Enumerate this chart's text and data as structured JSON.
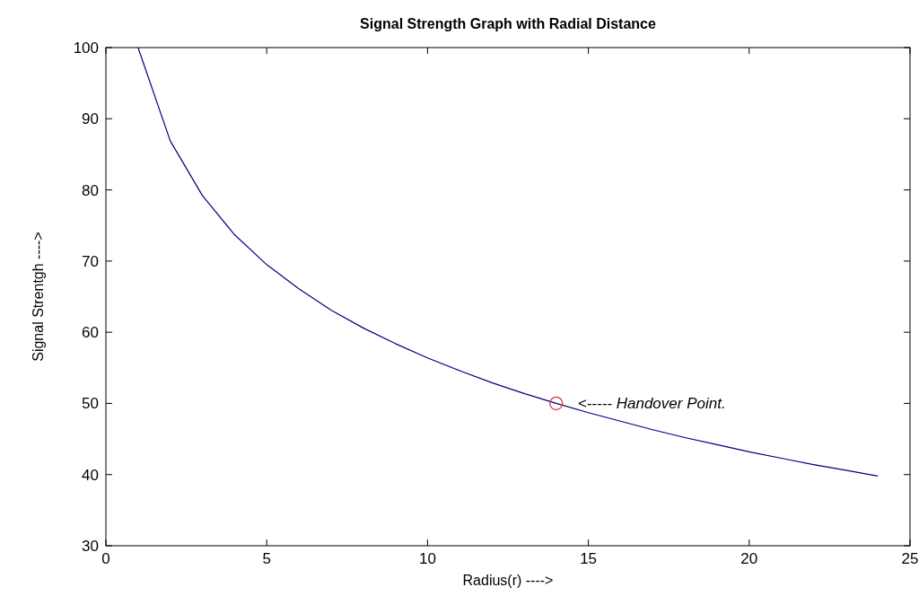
{
  "chart_data": {
    "type": "line",
    "title": "Signal Strength Graph with Radial Distance",
    "xlabel": "Radius(r)  ---->",
    "ylabel": "Signal Strentgh  ---->",
    "xlim": [
      0,
      25
    ],
    "xticks": [
      0,
      5,
      10,
      15,
      20,
      25
    ],
    "ylim": [
      30,
      100
    ],
    "yticks": [
      30,
      40,
      50,
      60,
      70,
      80,
      90,
      100
    ],
    "series": [
      {
        "type": "line",
        "color": "#000080",
        "x": [
          1,
          2,
          3,
          4,
          5,
          6,
          7,
          8,
          9,
          10,
          11,
          12,
          13,
          14,
          15,
          16,
          17,
          18,
          19,
          20,
          21,
          22,
          23,
          24
        ],
        "values": [
          100,
          86.9,
          79.2,
          73.7,
          69.5,
          66.1,
          63.1,
          60.6,
          58.4,
          56.4,
          54.6,
          52.9,
          51.4,
          50.0,
          48.7,
          47.5,
          46.3,
          45.2,
          44.2,
          43.2,
          42.3,
          41.4,
          40.6,
          39.8
        ]
      },
      {
        "type": "scatter",
        "color": "#e0303a",
        "marker": "circle",
        "x": [
          14
        ],
        "values": [
          50
        ]
      }
    ],
    "annotations": [
      {
        "text": "<----- Handover Point.",
        "x": 14,
        "y": 50
      }
    ]
  }
}
